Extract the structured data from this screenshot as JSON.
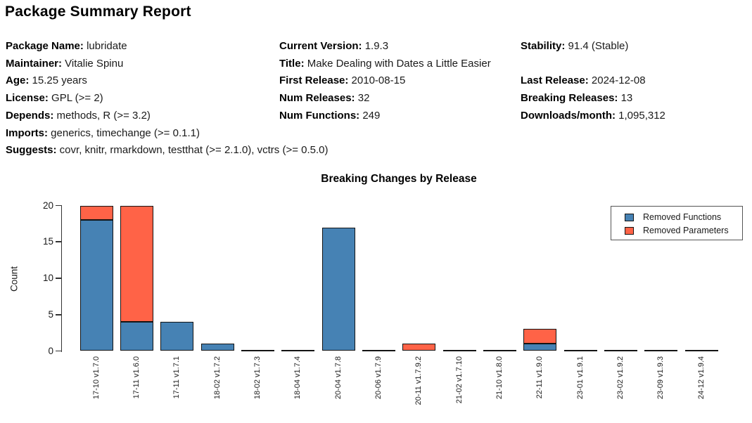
{
  "page_title": "Package Summary Report",
  "metadata": {
    "cells": [
      {
        "col": 0,
        "row": 0,
        "label": "Package Name:",
        "value": "lubridate"
      },
      {
        "col": 0,
        "row": 1,
        "label": "Maintainer:",
        "value": "Vitalie Spinu"
      },
      {
        "col": 0,
        "row": 2,
        "label": "Age:",
        "value": "15.25 years"
      },
      {
        "col": 0,
        "row": 3,
        "label": "License:",
        "value": "GPL (>= 2)"
      },
      {
        "col": 0,
        "row": 4,
        "label": "Depends:",
        "value": "methods, R (>= 3.2)"
      },
      {
        "col": 0,
        "row": 5,
        "label": "Imports:",
        "value": "generics, timechange (>= 0.1.1)"
      },
      {
        "col": 0,
        "row": 6,
        "label": "Suggests:",
        "value": "covr, knitr, rmarkdown, testthat (>= 2.1.0), vctrs (>= 0.5.0)"
      },
      {
        "col": 1,
        "row": 0,
        "label": "Current Version:",
        "value": "1.9.3"
      },
      {
        "col": 1,
        "row": 1,
        "label": "Title:",
        "value": "Make Dealing with Dates a Little Easier"
      },
      {
        "col": 1,
        "row": 2,
        "label": "First Release:",
        "value": "2010-08-15"
      },
      {
        "col": 1,
        "row": 3,
        "label": "Num Releases:",
        "value": "32"
      },
      {
        "col": 1,
        "row": 4,
        "label": "Num Functions:",
        "value": "249"
      },
      {
        "col": 2,
        "row": 0,
        "label": "Stability:",
        "value": "91.4 (Stable)"
      },
      {
        "col": 2,
        "row": 2,
        "label": "Last Release:",
        "value": "2024-12-08"
      },
      {
        "col": 2,
        "row": 3,
        "label": "Breaking Releases:",
        "value": "13"
      },
      {
        "col": 2,
        "row": 4,
        "label": "Downloads/month:",
        "value": "1,095,312"
      }
    ]
  },
  "chart_data": {
    "type": "bar",
    "stacked": true,
    "title": "Breaking Changes by Release",
    "xlabel": "",
    "ylabel": "Count",
    "ylim": [
      0,
      20
    ],
    "yticks": [
      0,
      5,
      10,
      15,
      20
    ],
    "grid": false,
    "legend_position": "upper right",
    "categories": [
      "17-10 v1.7.0",
      "17-11 v1.6.0",
      "17-11 v1.7.1",
      "18-02 v1.7.2",
      "18-02 v1.7.3",
      "18-04 v1.7.4",
      "20-04 v1.7.8",
      "20-06 v1.7.9",
      "20-11 v1.7.9.2",
      "21-02 v1.7.10",
      "21-10 v1.8.0",
      "22-11 v1.9.0",
      "23-01 v1.9.1",
      "23-02 v1.9.2",
      "23-09 v1.9.3",
      "24-12 v1.9.4"
    ],
    "series": [
      {
        "name": "Removed Functions",
        "color": "#4682B4",
        "values": [
          18,
          4,
          4,
          1,
          0,
          0,
          17,
          0,
          0,
          0,
          0,
          1,
          0,
          0,
          0,
          0
        ]
      },
      {
        "name": "Removed Parameters",
        "color": "#FF6347",
        "values": [
          2,
          16,
          0,
          0,
          0,
          0,
          0,
          0,
          1,
          0,
          0,
          2,
          0,
          0,
          0,
          0
        ]
      }
    ]
  }
}
